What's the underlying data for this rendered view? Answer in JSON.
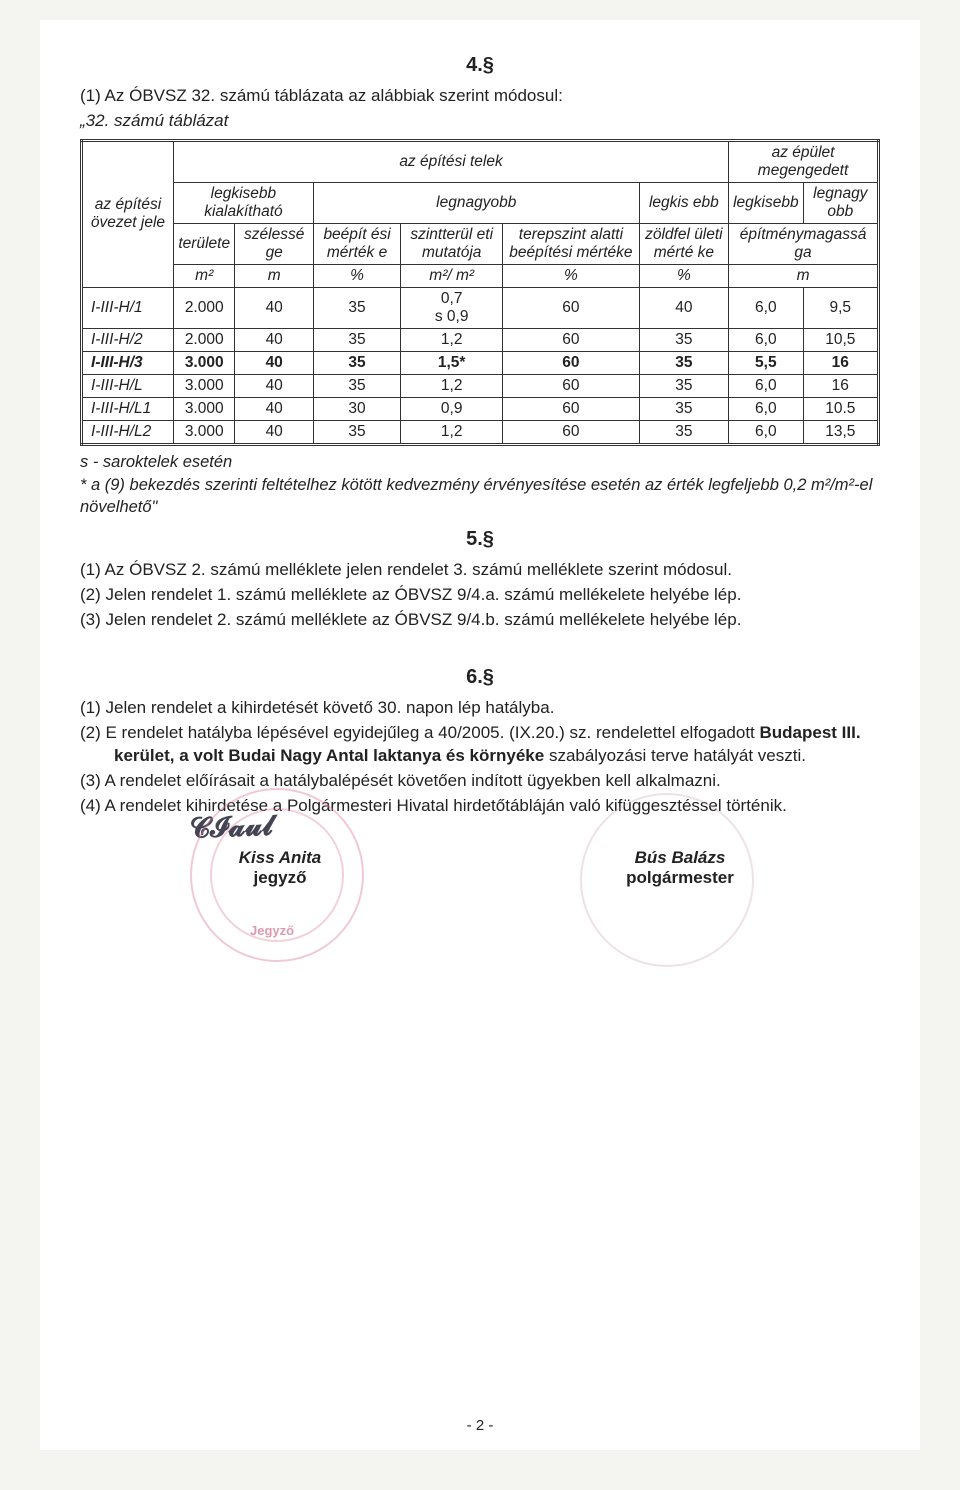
{
  "section4": {
    "heading": "4.§",
    "line1": "(1) Az ÓBVSZ 32. számú táblázata az alábbiak szerint módosul:",
    "line2": "„32. számú táblázat"
  },
  "table": {
    "head": {
      "colgroup1_top": "az építési telek",
      "colgroup2_top": "az épület megengedett",
      "row1_label": "az építési övezet jele",
      "legkisebb_kial": "legkisebb kialakítható",
      "legnagyobb": "legnagyobb",
      "legkis_ebb": "legkis ebb",
      "legkisebb": "legkisebb",
      "legnagy_obb": "legnagy obb",
      "terulete": "területe",
      "szelesse": "szélessé ge",
      "beepit": "beépít ési mérték e",
      "szintter": "szintterül eti mutatója",
      "terep": "terepszint alatti beépítési mértéke",
      "zoldfel": "zöldfel ületi mérté ke",
      "epitm": "építménymagassá ga",
      "u_m2": "m²",
      "u_m": "m",
      "u_pct": "%",
      "u_m2m2": "m²/ m²"
    },
    "rows": [
      {
        "label": "I-III-H/1",
        "c": [
          "2.000",
          "40",
          "35",
          "0,7\ns 0,9",
          "60",
          "40",
          "6,0",
          "9,5"
        ],
        "bold": false
      },
      {
        "label": "I-III-H/2",
        "c": [
          "2.000",
          "40",
          "35",
          "1,2",
          "60",
          "35",
          "6,0",
          "10,5"
        ],
        "bold": false
      },
      {
        "label": "I-III-H/3",
        "c": [
          "3.000",
          "40",
          "35",
          "1,5*",
          "60",
          "35",
          "5,5",
          "16"
        ],
        "bold": true
      },
      {
        "label": "I-III-H/L",
        "c": [
          "3.000",
          "40",
          "35",
          "1,2",
          "60",
          "35",
          "6,0",
          "16"
        ],
        "bold": false
      },
      {
        "label": "I-III-H/L1",
        "c": [
          "3.000",
          "40",
          "30",
          "0,9",
          "60",
          "35",
          "6,0",
          "10.5"
        ],
        "bold": false
      },
      {
        "label": "I-III-H/L2",
        "c": [
          "3.000",
          "40",
          "35",
          "1,2",
          "60",
          "35",
          "6,0",
          "13,5"
        ],
        "bold": false
      }
    ],
    "note_s": "s - saroktelek esetén",
    "note_star": "* a (9) bekezdés szerinti feltételhez kötött kedvezmény érvényesítése esetén az érték legfeljebb 0,2 m²/m²-el növelhető\""
  },
  "section5": {
    "heading": "5.§",
    "l1": "(1) Az ÓBVSZ 2. számú melléklete jelen rendelet 3. számú melléklete szerint módosul.",
    "l2": "(2) Jelen rendelet 1. számú melléklete az ÓBVSZ 9/4.a. számú mellékelete helyébe lép.",
    "l3": "(3) Jelen rendelet 2. számú melléklete az ÓBVSZ 9/4.b. számú mellékelete helyébe lép."
  },
  "section6": {
    "heading": "6.§",
    "l1": "(1)   Jelen rendelet a kihirdetését követő 30. napon lép hatályba.",
    "l2_a": "(2)   E rendelet hatályba lépésével egyidejűleg a 40/2005. (IX.20.) sz. rendelettel elfogadott ",
    "l2_b": "Budapest III. kerület, a volt Budai Nagy Antal laktanya és környéke",
    "l2_c": " szabályozási terve hatályát veszti.",
    "l3": "(3)   A rendelet előírásait a hatálybalépését követően indított ügyekben kell alkalmazni.",
    "l4": "(4)   A rendelet kihirdetése a Polgármesteri Hivatal hirdetőtábláján való kifüggesztéssel történik."
  },
  "signatures": {
    "left_name": "Kiss Anita",
    "left_role": "jegyző",
    "right_name": "Bús Balázs",
    "right_role": "polgármester",
    "stamp_text": "Jegyző"
  },
  "pagenum": "- 2 -"
}
